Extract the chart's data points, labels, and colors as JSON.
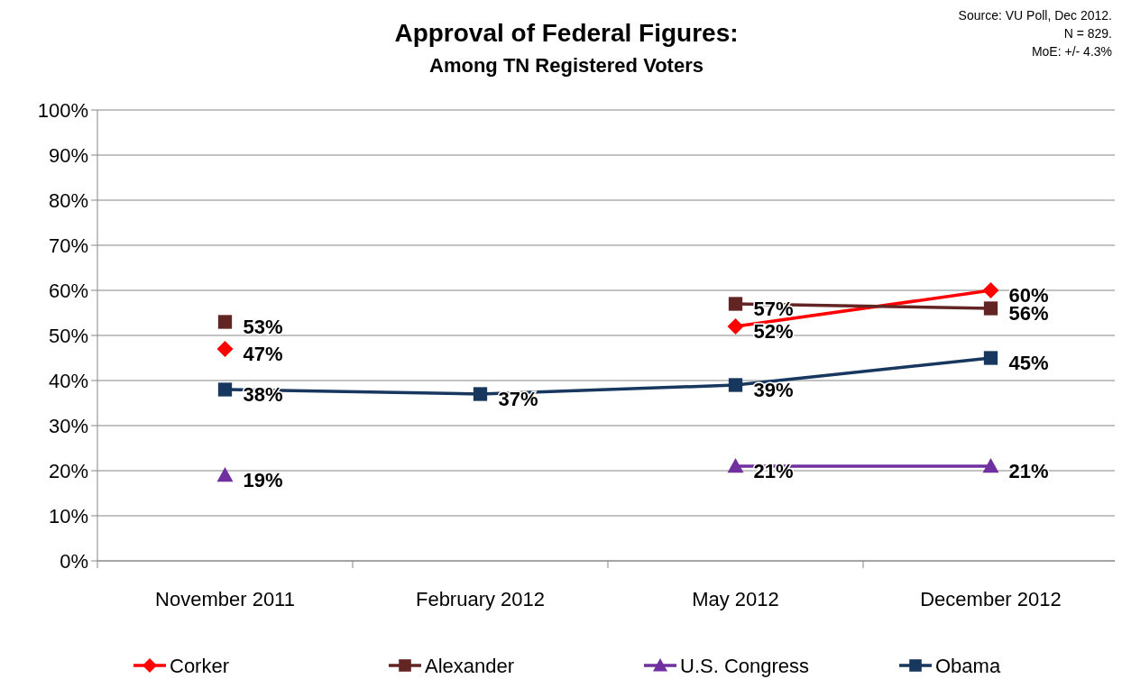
{
  "chart_data": {
    "type": "line",
    "title": "Approval of Federal Figures:",
    "subtitle": "Among TN Registered Voters",
    "annotations": [
      "Source: VU Poll, Dec 2012.",
      "N = 829.",
      "MoE: +/- 4.3%"
    ],
    "categories": [
      "November 2011",
      "February 2012",
      "May 2012",
      "December 2012"
    ],
    "series": [
      {
        "name": "Corker",
        "color": "#ff0000",
        "marker": "diamond",
        "values": [
          47,
          null,
          52,
          60
        ],
        "value_labels": [
          "47%",
          null,
          "52%",
          "60%"
        ]
      },
      {
        "name": "Alexander",
        "color": "#632523",
        "marker": "square",
        "values": [
          53,
          null,
          57,
          56
        ],
        "value_labels": [
          "53%",
          null,
          "57%",
          "56%"
        ]
      },
      {
        "name": "U.S. Congress",
        "color": "#7030a0",
        "marker": "triangle",
        "values": [
          19,
          null,
          21,
          21
        ],
        "value_labels": [
          "19%",
          null,
          "21%",
          "21%"
        ]
      },
      {
        "name": "Obama",
        "color": "#17375e",
        "marker": "square",
        "values": [
          38,
          37,
          39,
          45
        ],
        "value_labels": [
          "38%",
          "37%",
          "39%",
          "45%"
        ]
      }
    ],
    "ylim": [
      0,
      100
    ],
    "yticks": [
      {
        "value": 0,
        "label": "0%"
      },
      {
        "value": 10,
        "label": "10%"
      },
      {
        "value": 20,
        "label": "20%"
      },
      {
        "value": 30,
        "label": "30%"
      },
      {
        "value": 40,
        "label": "40%"
      },
      {
        "value": 50,
        "label": "50%"
      },
      {
        "value": 60,
        "label": "60%"
      },
      {
        "value": 70,
        "label": "70%"
      },
      {
        "value": 80,
        "label": "80%"
      },
      {
        "value": 90,
        "label": "90%"
      },
      {
        "value": 100,
        "label": "100%"
      }
    ],
    "grid": "y",
    "legend": "bottom",
    "line_style": "solid"
  }
}
